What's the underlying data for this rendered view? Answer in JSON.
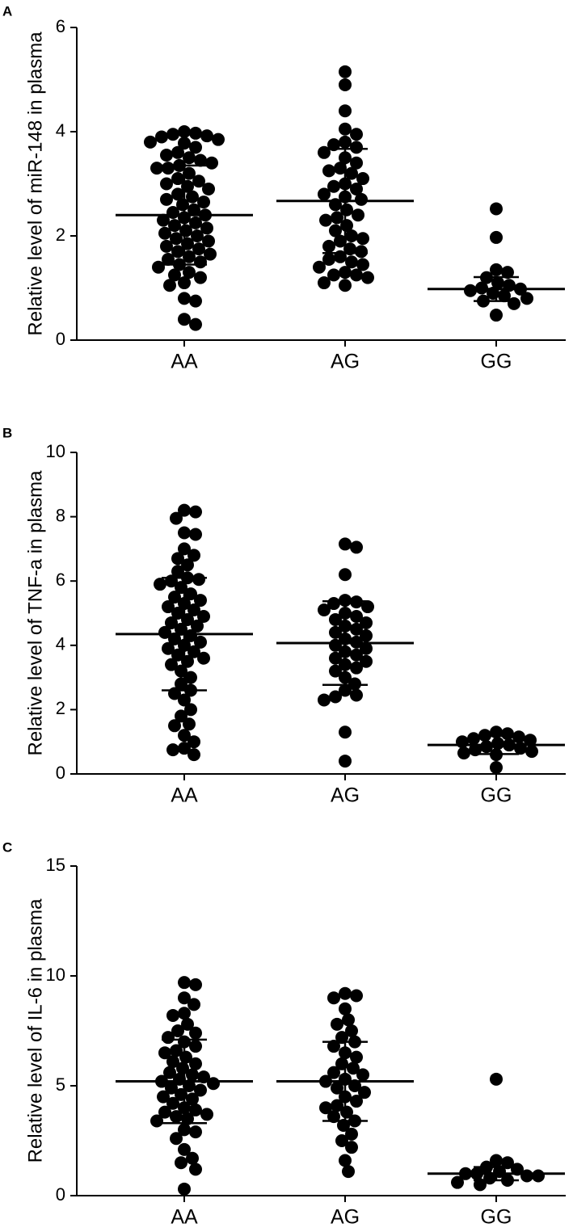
{
  "chart_data": [
    {
      "type": "dotplot",
      "panel_label": "A",
      "ylabel": "Relative level of miR-148 in plasma",
      "categories": [
        "AA",
        "AG",
        "GG"
      ],
      "values": [
        [
          4.0,
          3.97,
          3.95,
          3.92,
          3.9,
          3.85,
          3.8,
          3.78,
          3.7,
          3.6,
          3.55,
          3.5,
          3.45,
          3.4,
          3.35,
          3.3,
          3.3,
          3.2,
          3.1,
          3.05,
          3.0,
          2.95,
          2.9,
          2.8,
          2.75,
          2.7,
          2.65,
          2.6,
          2.5,
          2.45,
          2.4,
          2.35,
          2.3,
          2.25,
          2.2,
          2.15,
          2.1,
          2.05,
          2.0,
          1.95,
          1.9,
          1.85,
          1.8,
          1.75,
          1.7,
          1.65,
          1.6,
          1.55,
          1.5,
          1.45,
          1.4,
          1.3,
          1.25,
          1.2,
          1.1,
          1.05,
          0.8,
          0.75,
          0.4,
          0.3
        ],
        [
          5.15,
          4.9,
          4.4,
          4.05,
          3.95,
          3.8,
          3.75,
          3.7,
          3.6,
          3.5,
          3.4,
          3.3,
          3.25,
          3.2,
          3.1,
          3.0,
          2.95,
          2.9,
          2.8,
          2.75,
          2.7,
          2.6,
          2.5,
          2.4,
          2.35,
          2.3,
          2.2,
          2.1,
          2.0,
          1.95,
          1.9,
          1.8,
          1.75,
          1.7,
          1.6,
          1.55,
          1.5,
          1.45,
          1.4,
          1.3,
          1.25,
          1.25,
          1.2,
          1.1,
          1.05
        ],
        [
          2.52,
          1.97,
          1.35,
          1.3,
          1.2,
          1.1,
          1.05,
          1.0,
          0.98,
          0.95,
          0.9,
          0.85,
          0.8,
          0.75,
          0.7,
          0.48
        ]
      ],
      "means": [
        2.4,
        2.67,
        0.98
      ],
      "sd": [
        0.95,
        1.0,
        0.23
      ],
      "ylim": [
        0,
        6
      ],
      "yticks": [
        0,
        2,
        4,
        6
      ],
      "color": "#000000"
    },
    {
      "type": "dotplot",
      "panel_label": "B",
      "ylabel": "Relative level of TNF-a in plasma",
      "categories": [
        "AA",
        "AG",
        "GG"
      ],
      "values": [
        [
          8.2,
          8.15,
          7.95,
          7.5,
          7.45,
          7.0,
          6.8,
          6.7,
          6.5,
          6.3,
          6.1,
          6.05,
          6.0,
          5.9,
          5.8,
          5.6,
          5.5,
          5.4,
          5.3,
          5.2,
          5.1,
          5.0,
          4.9,
          4.8,
          4.7,
          4.6,
          4.5,
          4.4,
          4.3,
          4.2,
          4.1,
          4.0,
          3.9,
          3.8,
          3.7,
          3.6,
          3.5,
          3.4,
          3.2,
          3.0,
          2.8,
          2.6,
          2.5,
          2.3,
          2.0,
          1.8,
          1.55,
          1.5,
          1.2,
          1.0,
          0.8,
          0.75,
          0.6
        ],
        [
          7.15,
          7.05,
          6.2,
          5.4,
          5.35,
          5.3,
          5.2,
          5.1,
          5.0,
          4.9,
          4.8,
          4.7,
          4.6,
          4.5,
          4.4,
          4.3,
          4.2,
          4.1,
          4.0,
          3.9,
          3.8,
          3.7,
          3.6,
          3.5,
          3.4,
          3.3,
          3.2,
          3.0,
          2.8,
          2.6,
          2.45,
          2.4,
          2.3,
          1.3,
          0.4
        ],
        [
          1.3,
          1.25,
          1.2,
          1.15,
          1.1,
          1.05,
          1.0,
          0.95,
          0.9,
          0.85,
          0.8,
          0.75,
          0.7,
          0.65,
          0.6,
          0.2
        ]
      ],
      "means": [
        4.35,
        4.07,
        0.9
      ],
      "sd": [
        1.75,
        1.3,
        0.28
      ],
      "ylim": [
        0,
        10
      ],
      "yticks": [
        0,
        2,
        4,
        6,
        8,
        10
      ],
      "color": "#000000"
    },
    {
      "type": "dotplot",
      "panel_label": "C",
      "ylabel": "Relative level of IL-6 in plasma",
      "categories": [
        "AA",
        "AG",
        "GG"
      ],
      "values": [
        [
          9.7,
          9.6,
          9.0,
          8.7,
          8.3,
          8.2,
          7.8,
          7.5,
          7.4,
          7.2,
          7.0,
          6.8,
          6.6,
          6.5,
          6.3,
          6.1,
          6.0,
          5.8,
          5.6,
          5.5,
          5.4,
          5.3,
          5.2,
          5.1,
          5.0,
          4.9,
          4.8,
          4.6,
          4.5,
          4.4,
          4.2,
          4.0,
          3.9,
          3.8,
          3.7,
          3.6,
          3.5,
          3.4,
          3.0,
          2.9,
          2.6,
          2.1,
          1.7,
          1.5,
          1.2,
          0.3
        ],
        [
          9.2,
          9.1,
          9.0,
          8.5,
          8.0,
          7.8,
          7.5,
          7.2,
          7.0,
          6.8,
          6.5,
          6.3,
          6.0,
          5.8,
          5.6,
          5.5,
          5.3,
          5.2,
          5.0,
          4.9,
          4.7,
          4.5,
          4.3,
          4.1,
          4.0,
          3.8,
          3.6,
          3.4,
          3.2,
          2.8,
          2.5,
          2.2,
          1.6,
          1.1
        ],
        [
          5.3,
          1.6,
          1.5,
          1.3,
          1.2,
          1.1,
          1.0,
          1.0,
          0.9,
          0.9,
          0.8,
          0.7,
          0.6,
          0.5
        ]
      ],
      "means": [
        5.2,
        5.2,
        1.0
      ],
      "sd": [
        1.9,
        1.8,
        0.3
      ],
      "ylim": [
        0,
        15
      ],
      "yticks": [
        0,
        5,
        10,
        15
      ],
      "color": "#000000"
    }
  ]
}
